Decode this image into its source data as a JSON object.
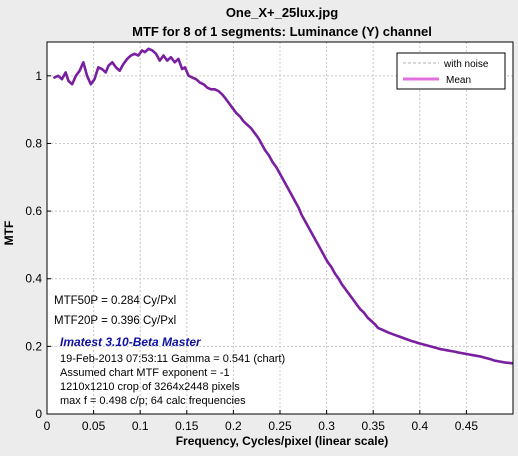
{
  "titles": {
    "line1": "One_X+_25lux.jpg",
    "line2": "MTF for 8 of 1 segments:  Luminance (Y) channel"
  },
  "legend": {
    "items": [
      "with noise",
      "Mean"
    ],
    "placement": "top-right"
  },
  "annotations": {
    "mtf50p": "MTF50P = 0.284 Cy/Pxl",
    "mtf20p": "MTF20P = 0.396 Cy/Pxl",
    "version": "Imatest 3.10-Beta Master",
    "date_gamma": "19-Feb-2013 07:53:11    Gamma = 0.541 (chart)",
    "exponent": "Assumed chart MTF exponent = -1",
    "crop": "1210x1210 crop of 3264x2448 pixels",
    "maxf": "max f = 0.498 c/p;  64 calc frequencies"
  },
  "colors": {
    "mean_line": "#7a1fa0",
    "legend_mean": "#e070e0",
    "noise_line": "#b0b0b0",
    "grid": "#c8c8c8",
    "version_text": "#1010a0"
  },
  "chart_data": {
    "type": "line",
    "xlabel": "Frequency, Cycles/pixel (linear scale)",
    "ylabel": "MTF",
    "xlim": [
      0,
      0.5
    ],
    "ylim": [
      0,
      1.1
    ],
    "grid": true,
    "xticks": [
      "0",
      "0.05",
      "0.1",
      "0.15",
      "0.2",
      "0.25",
      "0.3",
      "0.35",
      "0.4",
      "0.45"
    ],
    "yticks": [
      "0",
      "0.2",
      "0.4",
      "0.6",
      "0.8",
      "1"
    ],
    "series": [
      {
        "name": "Mean",
        "x": [
          0.008,
          0.012,
          0.016,
          0.02,
          0.023,
          0.027,
          0.031,
          0.035,
          0.039,
          0.043,
          0.047,
          0.051,
          0.055,
          0.059,
          0.063,
          0.066,
          0.07,
          0.074,
          0.078,
          0.082,
          0.086,
          0.09,
          0.094,
          0.098,
          0.102,
          0.105,
          0.109,
          0.113,
          0.117,
          0.121,
          0.125,
          0.129,
          0.133,
          0.137,
          0.141,
          0.145,
          0.148,
          0.152,
          0.156,
          0.16,
          0.164,
          0.168,
          0.172,
          0.176,
          0.18,
          0.184,
          0.188,
          0.191,
          0.195,
          0.199,
          0.203,
          0.207,
          0.211,
          0.215,
          0.219,
          0.223,
          0.227,
          0.23,
          0.234,
          0.238,
          0.242,
          0.246,
          0.25,
          0.254,
          0.258,
          0.262,
          0.266,
          0.27,
          0.273,
          0.277,
          0.281,
          0.285,
          0.289,
          0.293,
          0.297,
          0.301,
          0.305,
          0.309,
          0.313,
          0.316,
          0.32,
          0.324,
          0.328,
          0.332,
          0.336,
          0.34,
          0.344,
          0.348,
          0.352,
          0.355,
          0.359,
          0.363,
          0.367,
          0.371,
          0.375,
          0.379,
          0.383,
          0.387,
          0.391,
          0.395,
          0.398,
          0.402,
          0.406,
          0.41,
          0.414,
          0.418,
          0.422,
          0.426,
          0.43,
          0.434,
          0.438,
          0.441,
          0.445,
          0.449,
          0.453,
          0.457,
          0.461,
          0.465,
          0.469,
          0.473,
          0.477,
          0.48,
          0.484,
          0.488,
          0.492,
          0.496,
          0.499
        ],
        "y": [
          0.995,
          1.0,
          0.99,
          1.01,
          0.985,
          0.975,
          1.0,
          1.015,
          1.04,
          1.0,
          0.975,
          0.99,
          1.025,
          1.02,
          1.01,
          1.03,
          1.04,
          1.025,
          1.015,
          1.035,
          1.05,
          1.06,
          1.065,
          1.06,
          1.075,
          1.07,
          1.08,
          1.075,
          1.065,
          1.045,
          1.06,
          1.045,
          1.055,
          1.04,
          1.05,
          1.02,
          1.025,
          1.0,
          0.995,
          0.99,
          0.98,
          0.975,
          0.965,
          0.96,
          0.96,
          0.955,
          0.945,
          0.935,
          0.92,
          0.905,
          0.89,
          0.88,
          0.865,
          0.855,
          0.845,
          0.83,
          0.815,
          0.8,
          0.78,
          0.765,
          0.745,
          0.73,
          0.71,
          0.69,
          0.67,
          0.65,
          0.63,
          0.61,
          0.59,
          0.57,
          0.55,
          0.53,
          0.51,
          0.49,
          0.47,
          0.45,
          0.435,
          0.415,
          0.4,
          0.385,
          0.37,
          0.355,
          0.34,
          0.325,
          0.31,
          0.3,
          0.285,
          0.275,
          0.265,
          0.255,
          0.25,
          0.245,
          0.24,
          0.236,
          0.232,
          0.228,
          0.224,
          0.22,
          0.216,
          0.213,
          0.21,
          0.207,
          0.204,
          0.201,
          0.198,
          0.195,
          0.192,
          0.19,
          0.188,
          0.186,
          0.184,
          0.182,
          0.18,
          0.178,
          0.176,
          0.174,
          0.172,
          0.17,
          0.167,
          0.164,
          0.161,
          0.158,
          0.156,
          0.154,
          0.152,
          0.151,
          0.15
        ]
      },
      {
        "name": "with noise",
        "x": [],
        "y": []
      }
    ]
  }
}
